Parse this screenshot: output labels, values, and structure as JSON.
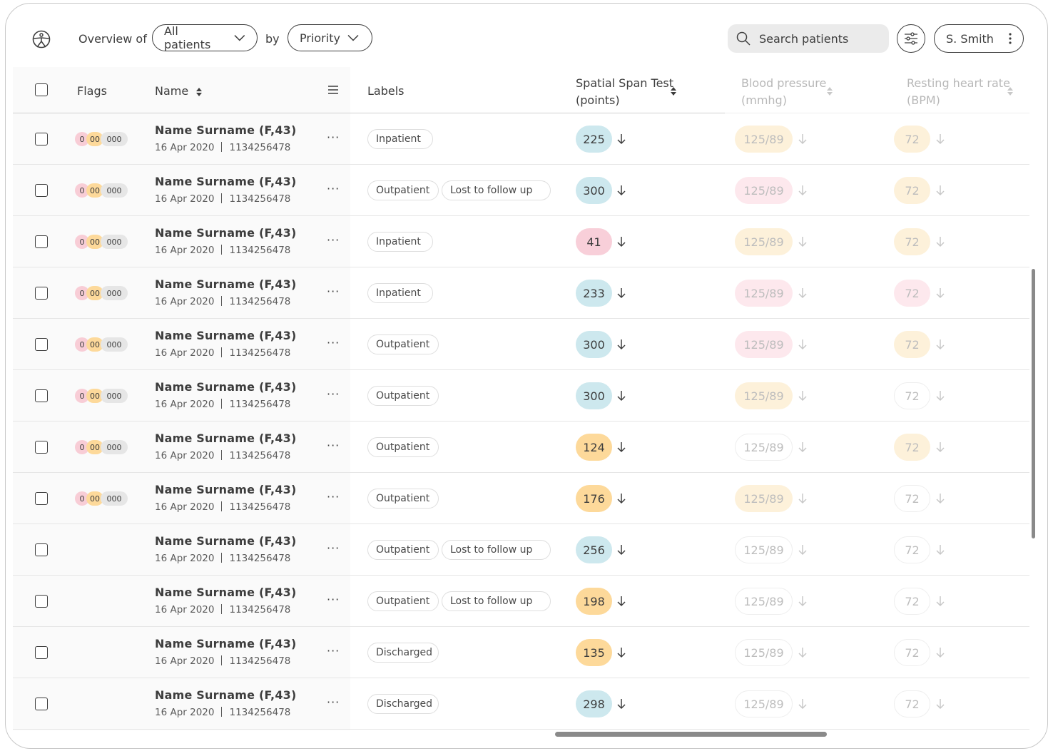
{
  "header": {
    "overview_label": "Overview of",
    "filter_dropdown": "All patients",
    "by_label": "by",
    "sort_dropdown": "Priority",
    "search_placeholder": "Search patients",
    "user_name": "S. Smith",
    "icons": [
      "app-logo-icon",
      "chevron-down-icon",
      "search-icon",
      "sliders-icon",
      "kebab-icon"
    ]
  },
  "table": {
    "columns": {
      "flags": "Flags",
      "name": "Name",
      "labels": "Labels",
      "spatial": [
        "Spatial Span Test",
        "(points)"
      ],
      "bp": [
        "Blood pressure",
        "(mmhg)"
      ],
      "hr": [
        "Resting heart rate",
        "(BPM)"
      ]
    },
    "rows": [
      {
        "name": "Name Surname (F,43)",
        "date": "16 Apr 2020",
        "id": "1134256478",
        "flags": [
          "0",
          "00",
          "000"
        ],
        "labels": [
          "Inpatient"
        ],
        "spatial": "225",
        "spatial_tone": "blue",
        "bp": "125/89",
        "bp_tone": "fyel",
        "hr": "72",
        "hr_tone": "fyel"
      },
      {
        "name": "Name Surname (F,43)",
        "date": "16 Apr 2020",
        "id": "1134256478",
        "flags": [
          "0",
          "00",
          "000"
        ],
        "labels": [
          "Outpatient",
          "Lost to follow up"
        ],
        "spatial": "300",
        "spatial_tone": "blue",
        "bp": "125/89",
        "bp_tone": "fpink",
        "hr": "72",
        "hr_tone": "fyel"
      },
      {
        "name": "Name Surname (F,43)",
        "date": "16 Apr 2020",
        "id": "1134256478",
        "flags": [
          "0",
          "00",
          "000"
        ],
        "labels": [
          "Inpatient"
        ],
        "spatial": "41",
        "spatial_tone": "pink",
        "bp": "125/89",
        "bp_tone": "fyel",
        "hr": "72",
        "hr_tone": "fyel"
      },
      {
        "name": "Name Surname (F,43)",
        "date": "16 Apr 2020",
        "id": "1134256478",
        "flags": [
          "0",
          "00",
          "000"
        ],
        "labels": [
          "Inpatient"
        ],
        "spatial": "233",
        "spatial_tone": "blue",
        "bp": "125/89",
        "bp_tone": "fpink",
        "hr": "72",
        "hr_tone": "fpink"
      },
      {
        "name": "Name Surname (F,43)",
        "date": "16 Apr 2020",
        "id": "1134256478",
        "flags": [
          "0",
          "00",
          "000"
        ],
        "labels": [
          "Outpatient"
        ],
        "spatial": "300",
        "spatial_tone": "blue",
        "bp": "125/89",
        "bp_tone": "fpink",
        "hr": "72",
        "hr_tone": "fyel"
      },
      {
        "name": "Name Surname (F,43)",
        "date": "16 Apr 2020",
        "id": "1134256478",
        "flags": [
          "0",
          "00",
          "000"
        ],
        "labels": [
          "Outpatient"
        ],
        "spatial": "300",
        "spatial_tone": "blue",
        "bp": "125/89",
        "bp_tone": "fyel",
        "hr": "72",
        "hr_tone": "fnone"
      },
      {
        "name": "Name Surname (F,43)",
        "date": "16 Apr 2020",
        "id": "1134256478",
        "flags": [
          "0",
          "00",
          "000"
        ],
        "labels": [
          "Outpatient"
        ],
        "spatial": "124",
        "spatial_tone": "orange",
        "bp": "125/89",
        "bp_tone": "fnone",
        "hr": "72",
        "hr_tone": "fyel"
      },
      {
        "name": "Name Surname (F,43)",
        "date": "16 Apr 2020",
        "id": "1134256478",
        "flags": [
          "0",
          "00",
          "000"
        ],
        "labels": [
          "Outpatient"
        ],
        "spatial": "176",
        "spatial_tone": "orange",
        "bp": "125/89",
        "bp_tone": "fyel",
        "hr": "72",
        "hr_tone": "fnone"
      },
      {
        "name": "Name Surname (F,43)",
        "date": "16 Apr 2020",
        "id": "1134256478",
        "flags": [],
        "labels": [
          "Outpatient",
          "Lost to follow up"
        ],
        "spatial": "256",
        "spatial_tone": "blue",
        "bp": "125/89",
        "bp_tone": "fnone",
        "hr": "72",
        "hr_tone": "fnone"
      },
      {
        "name": "Name Surname (F,43)",
        "date": "16 Apr 2020",
        "id": "1134256478",
        "flags": [],
        "labels": [
          "Outpatient",
          "Lost to follow up"
        ],
        "spatial": "198",
        "spatial_tone": "orange",
        "bp": "125/89",
        "bp_tone": "fnone",
        "hr": "72",
        "hr_tone": "fnone"
      },
      {
        "name": "Name Surname (F,43)",
        "date": "16 Apr 2020",
        "id": "1134256478",
        "flags": [],
        "labels": [
          "Discharged"
        ],
        "spatial": "135",
        "spatial_tone": "orange",
        "bp": "125/89",
        "bp_tone": "fnone",
        "hr": "72",
        "hr_tone": "fnone"
      },
      {
        "name": "Name Surname (F,43)",
        "date": "16 Apr 2020",
        "id": "1134256478",
        "flags": [],
        "labels": [
          "Discharged"
        ],
        "spatial": "298",
        "spatial_tone": "blue",
        "bp": "125/89",
        "bp_tone": "fnone",
        "hr": "72",
        "hr_tone": "fnone"
      }
    ]
  },
  "colors": {
    "blue": "#cde8ee",
    "pink": "#f8cfd9",
    "orange": "#fdd99a",
    "faint_pink": "#fde8ed",
    "faint_yellow": "#fdf1da",
    "text": "#3d3d3d"
  }
}
